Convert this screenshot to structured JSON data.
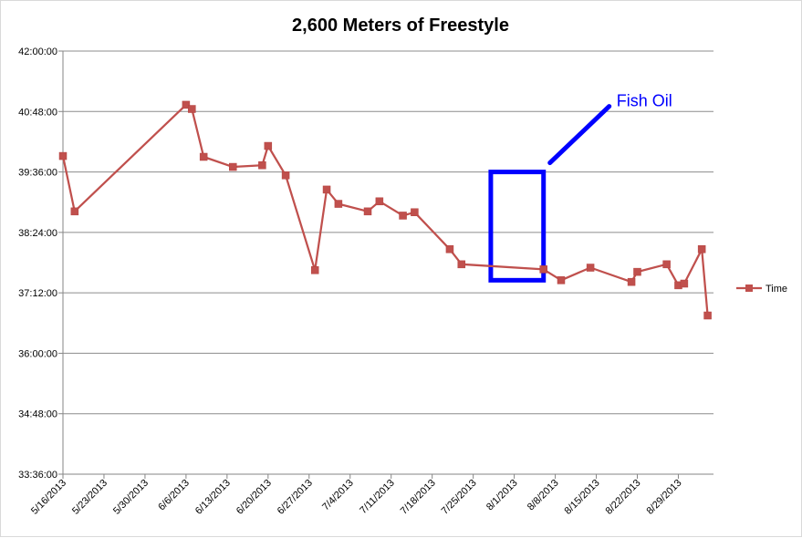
{
  "chart_data": {
    "type": "line",
    "title": "2,600 Meters of Freestyle",
    "xlabel": "",
    "ylabel": "",
    "x_start_date": "2013-05-16",
    "x_end_date": "2013-09-04",
    "x_tick_labels": [
      "5/16/2013",
      "5/23/2013",
      "5/30/2013",
      "6/6/2013",
      "6/13/2013",
      "6/20/2013",
      "6/27/2013",
      "7/4/2013",
      "7/11/2013",
      "7/18/2013",
      "7/25/2013",
      "8/1/2013",
      "8/8/2013",
      "8/15/2013",
      "8/22/2013",
      "8/29/2013"
    ],
    "y_tick_labels": [
      "42:00:00",
      "40:48:00",
      "39:36:00",
      "38:24:00",
      "37:12:00",
      "36:00:00",
      "34:48:00",
      "33:36:00"
    ],
    "ylim": [
      "33:36:00",
      "42:00:00"
    ],
    "grid": true,
    "legend": "right",
    "series": [
      {
        "name": "Time",
        "color": "#c0504d",
        "points": [
          {
            "x": "2013-05-16",
            "y": "39:55:00"
          },
          {
            "x": "2013-05-18",
            "y": "38:49:00"
          },
          {
            "x": "2013-06-06",
            "y": "40:56:00"
          },
          {
            "x": "2013-06-07",
            "y": "40:51:00"
          },
          {
            "x": "2013-06-09",
            "y": "39:54:00"
          },
          {
            "x": "2013-06-14",
            "y": "39:42:00"
          },
          {
            "x": "2013-06-19",
            "y": "39:44:00"
          },
          {
            "x": "2013-06-20",
            "y": "40:07:00"
          },
          {
            "x": "2013-06-23",
            "y": "39:32:00"
          },
          {
            "x": "2013-06-28",
            "y": "37:39:00"
          },
          {
            "x": "2013-06-30",
            "y": "39:15:00"
          },
          {
            "x": "2013-07-02",
            "y": "38:58:00"
          },
          {
            "x": "2013-07-07",
            "y": "38:49:00"
          },
          {
            "x": "2013-07-09",
            "y": "39:01:00"
          },
          {
            "x": "2013-07-13",
            "y": "38:44:00"
          },
          {
            "x": "2013-07-15",
            "y": "38:48:00"
          },
          {
            "x": "2013-07-21",
            "y": "38:04:00"
          },
          {
            "x": "2013-07-23",
            "y": "37:46:00"
          },
          {
            "x": "2013-08-06",
            "y": "37:40:00"
          },
          {
            "x": "2013-08-09",
            "y": "37:27:00"
          },
          {
            "x": "2013-08-14",
            "y": "37:42:00"
          },
          {
            "x": "2013-08-21",
            "y": "37:25:00"
          },
          {
            "x": "2013-08-22",
            "y": "37:37:00"
          },
          {
            "x": "2013-08-27",
            "y": "37:46:00"
          },
          {
            "x": "2013-08-29",
            "y": "37:21:00"
          },
          {
            "x": "2013-08-30",
            "y": "37:23:00"
          },
          {
            "x": "2013-09-02",
            "y": "38:04:00"
          },
          {
            "x": "2013-09-03",
            "y": "36:45:00"
          }
        ]
      }
    ],
    "annotations": [
      {
        "text": "Fish Oil",
        "color": "#0000ff",
        "box_x": [
          "2013-07-28",
          "2013-08-06"
        ],
        "box_y": [
          "37:27:00",
          "39:36:00"
        ]
      }
    ]
  }
}
